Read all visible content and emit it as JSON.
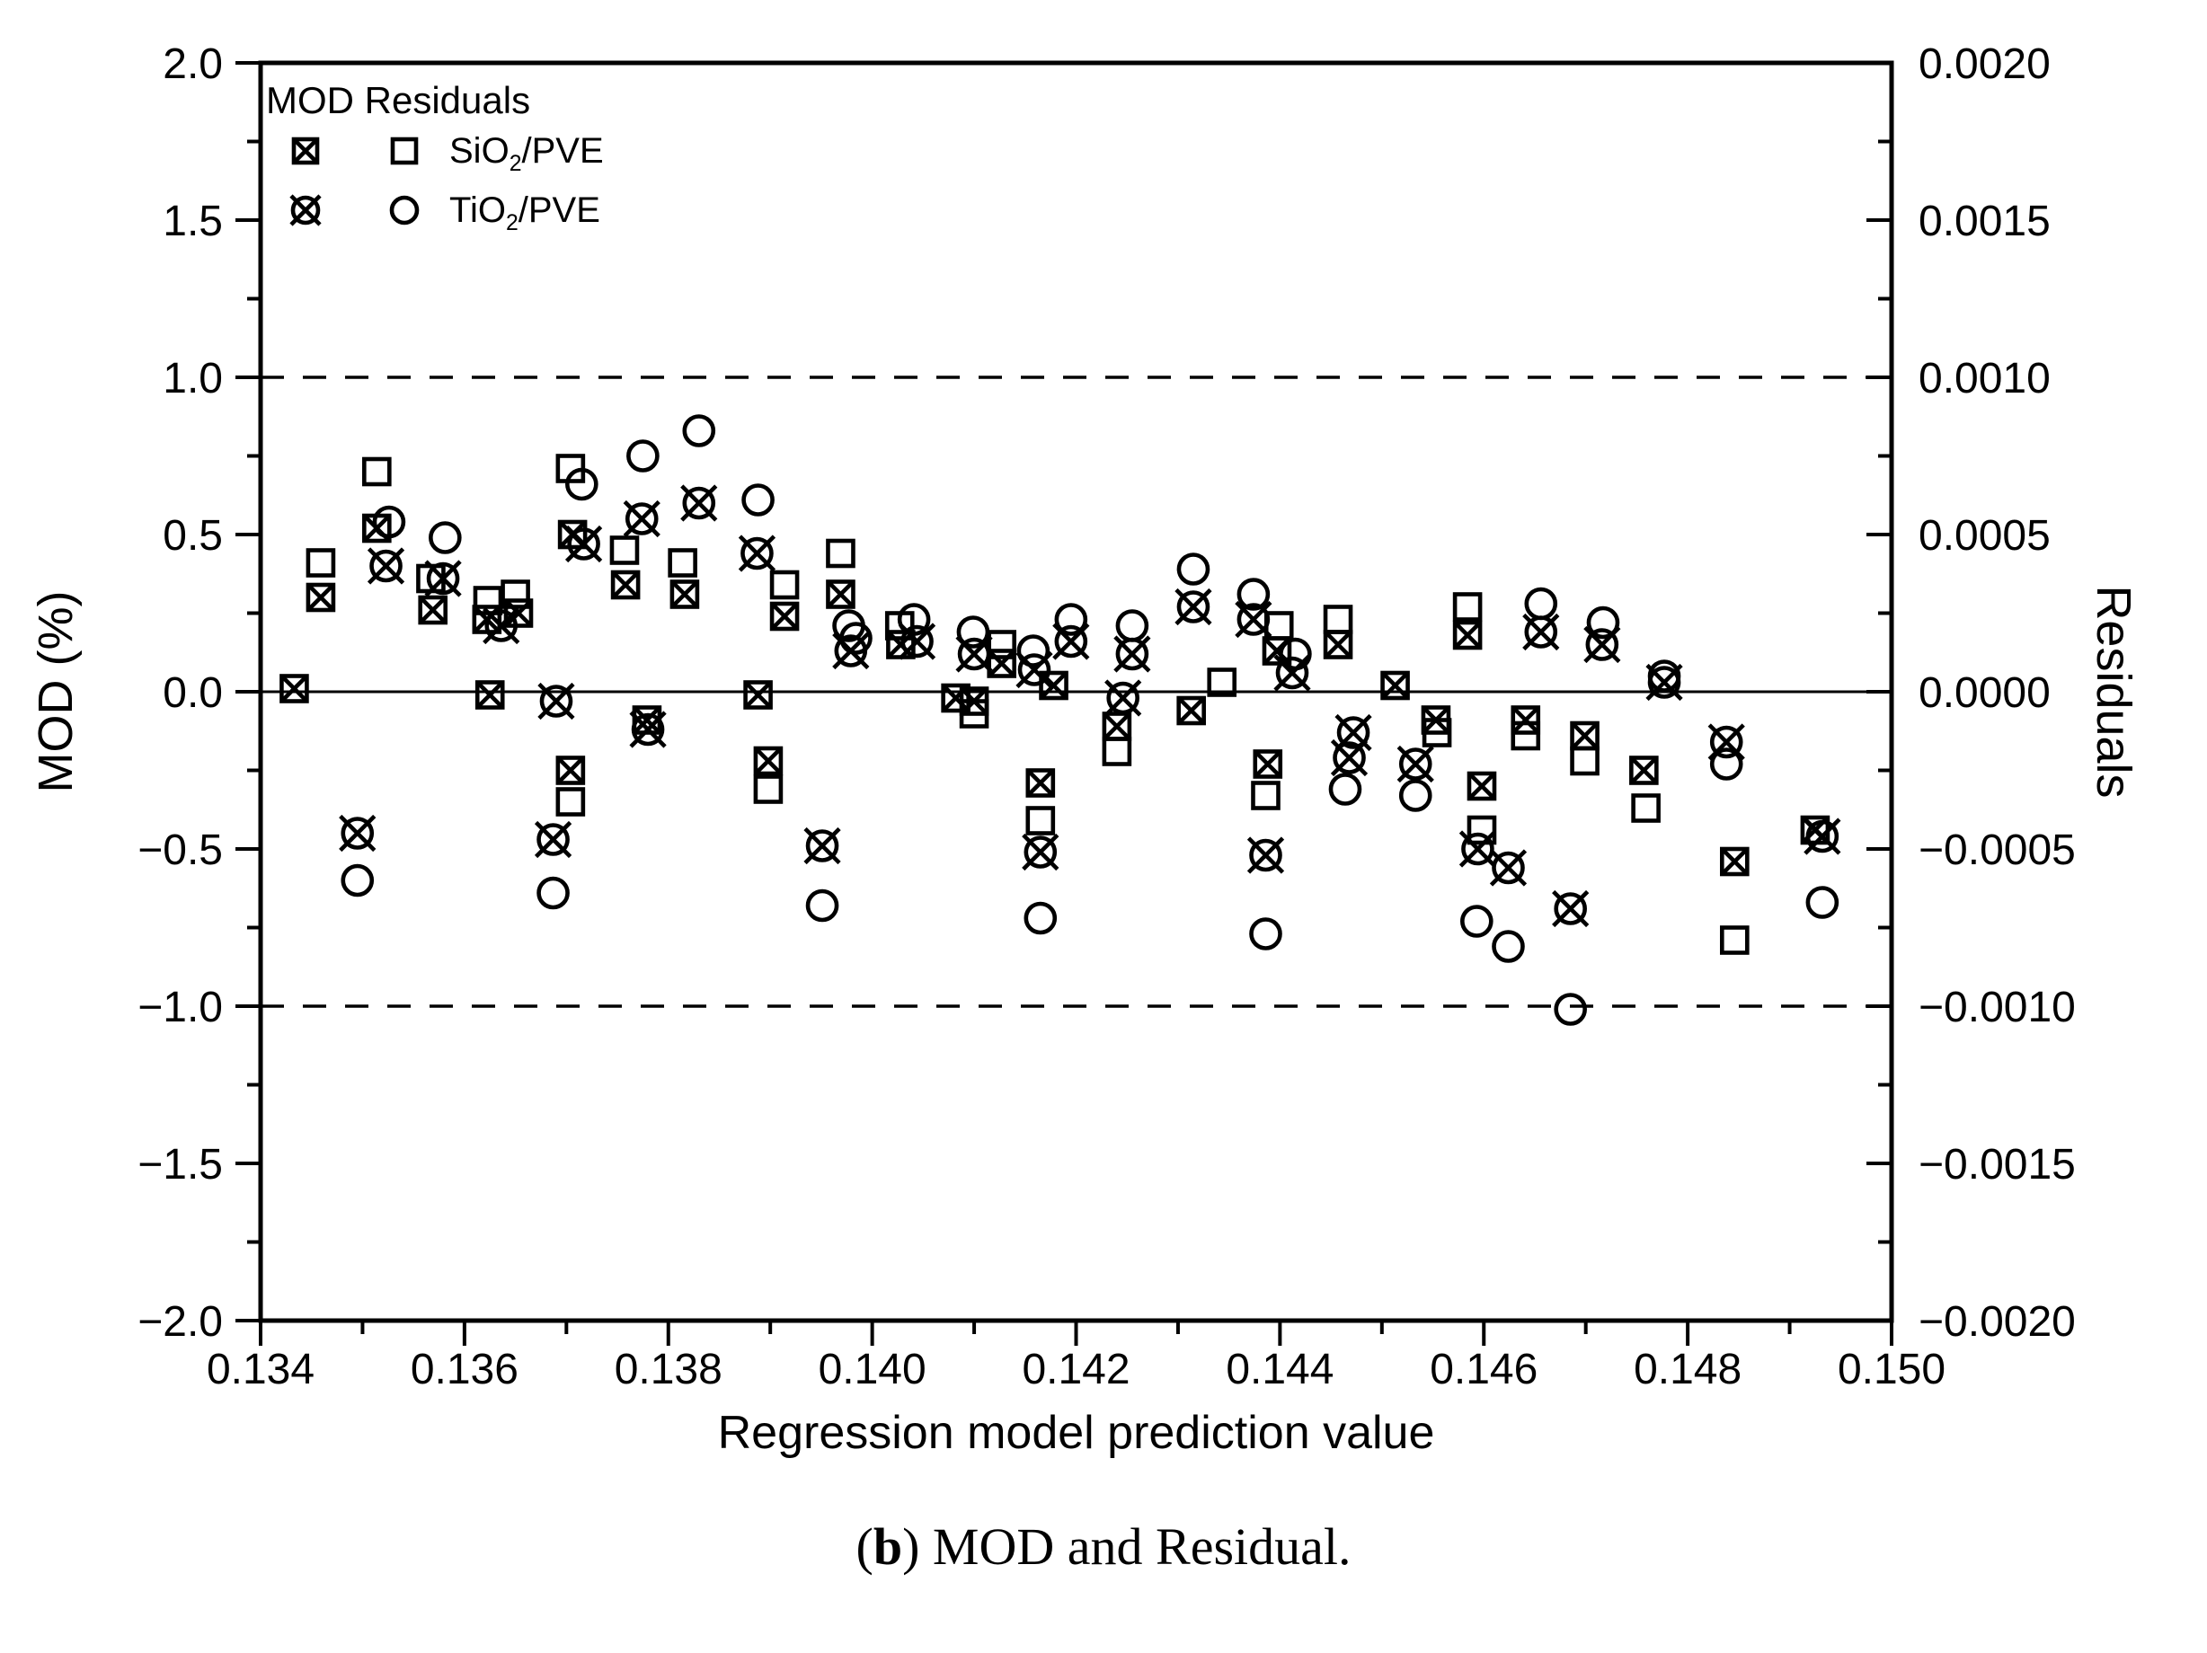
{
  "figure": {
    "caption": {
      "prefix": "(",
      "bold_letter": "b",
      "suffix": ") MOD and Residual."
    }
  },
  "chart_data": {
    "type": "scatter",
    "xlabel": "Regression model prediction value",
    "ylabel_left": "MOD (%)",
    "ylabel_right": "Residuals",
    "xlim": [
      0.134,
      0.15
    ],
    "ylim_left": [
      -2.0,
      2.0
    ],
    "ylim_right": [
      -0.002,
      0.002
    ],
    "x_tick_labels": [
      "0.134",
      "0.136",
      "0.138",
      "0.140",
      "0.142",
      "0.144",
      "0.146",
      "0.148",
      "0.150"
    ],
    "x_major_step": 0.002,
    "x_minor_step": 0.001,
    "y_left_tick_labels": [
      "2.0",
      "1.5",
      "1.0",
      "0.5",
      "0.0",
      "−0.5",
      "−1.0",
      "−1.5",
      "−2.0"
    ],
    "y_left_major_step": 0.5,
    "y_left_minor_step": 0.25,
    "y_right_tick_labels": [
      "0.0020",
      "0.0015",
      "0.0010",
      "0.0005",
      "0.0000",
      "−0.0005",
      "−0.0010",
      "−0.0015",
      "−0.0020"
    ],
    "grid": false,
    "legend_position": "top-left-inside",
    "reference_lines": {
      "solid_at_mod": 0.0,
      "dashed_at_mod": [
        1.0,
        -1.0
      ]
    },
    "legend": {
      "header": "MOD Residuals",
      "rows": [
        {
          "pre": "SiO",
          "sub": "2",
          "post": "/PVE",
          "mod_marker": "square-cross",
          "residual_marker": "square-open"
        },
        {
          "pre": "TiO",
          "sub": "2",
          "post": "/PVE",
          "mod_marker": "circle-cross",
          "residual_marker": "circle-open"
        }
      ]
    },
    "series": [
      {
        "name": "SiO2/PVE MOD",
        "marker": "square-cross",
        "axis": "left",
        "points": [
          [
            0.13433,
            0.01
          ],
          [
            0.13459,
            0.3
          ],
          [
            0.13514,
            0.52
          ],
          [
            0.13569,
            0.26
          ],
          [
            0.13622,
            0.23
          ],
          [
            0.13625,
            -0.01
          ],
          [
            0.13653,
            0.25
          ],
          [
            0.13706,
            0.5
          ],
          [
            0.13704,
            -0.25
          ],
          [
            0.13758,
            0.34
          ],
          [
            0.13779,
            -0.09
          ],
          [
            0.13816,
            0.31
          ],
          [
            0.13888,
            -0.01
          ],
          [
            0.13898,
            -0.22
          ],
          [
            0.13914,
            0.24
          ],
          [
            0.13969,
            0.31
          ],
          [
            0.14028,
            0.15
          ],
          [
            0.14082,
            -0.02
          ],
          [
            0.141,
            -0.03
          ],
          [
            0.14127,
            0.09
          ],
          [
            0.14165,
            -0.29
          ],
          [
            0.14178,
            0.02
          ],
          [
            0.1424,
            -0.11
          ],
          [
            0.14313,
            -0.06
          ],
          [
            0.14388,
            -0.23
          ],
          [
            0.14397,
            0.13
          ],
          [
            0.14457,
            0.15
          ],
          [
            0.14513,
            0.02
          ],
          [
            0.14553,
            -0.09
          ],
          [
            0.14584,
            0.18
          ],
          [
            0.14598,
            -0.3
          ],
          [
            0.14641,
            -0.09
          ],
          [
            0.14699,
            -0.14
          ],
          [
            0.14757,
            -0.25
          ],
          [
            0.14846,
            -0.54
          ],
          [
            0.14925,
            -0.44
          ]
        ]
      },
      {
        "name": "SiO2/PVE Residuals",
        "marker": "square-open",
        "axis": "right",
        "points": [
          [
            0.13459,
            0.00041
          ],
          [
            0.13514,
            0.0007
          ],
          [
            0.13567,
            0.00036
          ],
          [
            0.13623,
            0.00029
          ],
          [
            0.1365,
            0.00031
          ],
          [
            0.13704,
            0.00071
          ],
          [
            0.13704,
            -0.00035
          ],
          [
            0.13757,
            0.00045
          ],
          [
            0.13814,
            0.00041
          ],
          [
            0.13898,
            -0.00031
          ],
          [
            0.13914,
            0.00034
          ],
          [
            0.13969,
            0.00044
          ],
          [
            0.14027,
            0.00021
          ],
          [
            0.141,
            -7e-05
          ],
          [
            0.14127,
            0.00015
          ],
          [
            0.14165,
            -0.00041
          ],
          [
            0.1424,
            -0.00019
          ],
          [
            0.14343,
            3e-05
          ],
          [
            0.14386,
            -0.00033
          ],
          [
            0.14399,
            0.00021
          ],
          [
            0.14457,
            0.00023
          ],
          [
            0.14554,
            -0.00013
          ],
          [
            0.14584,
            0.00027
          ],
          [
            0.14598,
            -0.00044
          ],
          [
            0.14641,
            -0.00014
          ],
          [
            0.14699,
            -0.00022
          ],
          [
            0.14759,
            -0.00037
          ],
          [
            0.14846,
            -0.00079
          ]
        ]
      },
      {
        "name": "TiO2/PVE MOD",
        "marker": "circle-cross",
        "axis": "left",
        "points": [
          [
            0.13495,
            -0.45
          ],
          [
            0.13523,
            0.4
          ],
          [
            0.13579,
            0.36
          ],
          [
            0.13636,
            0.21
          ],
          [
            0.1369,
            -0.03
          ],
          [
            0.13687,
            -0.47
          ],
          [
            0.13717,
            0.47
          ],
          [
            0.13774,
            0.55
          ],
          [
            0.1378,
            -0.12
          ],
          [
            0.1383,
            0.6
          ],
          [
            0.13887,
            0.44
          ],
          [
            0.13951,
            -0.49
          ],
          [
            0.13979,
            0.13
          ],
          [
            0.14044,
            0.16
          ],
          [
            0.141,
            0.12
          ],
          [
            0.14159,
            0.07
          ],
          [
            0.14165,
            -0.51
          ],
          [
            0.14195,
            0.16
          ],
          [
            0.14246,
            -0.02
          ],
          [
            0.14255,
            0.12
          ],
          [
            0.14315,
            0.27
          ],
          [
            0.14374,
            0.23
          ],
          [
            0.14386,
            -0.52
          ],
          [
            0.14412,
            0.06
          ],
          [
            0.14472,
            -0.13
          ],
          [
            0.14468,
            -0.21
          ],
          [
            0.14533,
            -0.23
          ],
          [
            0.14594,
            -0.5
          ],
          [
            0.14624,
            -0.56
          ],
          [
            0.14656,
            0.19
          ],
          [
            0.14685,
            -0.69
          ],
          [
            0.14716,
            0.15
          ],
          [
            0.14777,
            0.03
          ],
          [
            0.14838,
            -0.16
          ],
          [
            0.14932,
            -0.46
          ]
        ]
      },
      {
        "name": "TiO2/PVE Residuals",
        "marker": "circle-open",
        "axis": "right",
        "points": [
          [
            0.13495,
            -0.0006
          ],
          [
            0.13526,
            0.00054
          ],
          [
            0.13581,
            0.00049
          ],
          [
            0.13687,
            -0.00064
          ],
          [
            0.13715,
            0.00066
          ],
          [
            0.13775,
            0.00075
          ],
          [
            0.1383,
            0.00083
          ],
          [
            0.13888,
            0.00061
          ],
          [
            0.13951,
            -0.00068
          ],
          [
            0.13977,
            0.00021
          ],
          [
            0.13984,
            0.00017
          ],
          [
            0.14041,
            0.00023
          ],
          [
            0.14099,
            0.00019
          ],
          [
            0.14158,
            0.00013
          ],
          [
            0.14165,
            -0.00072
          ],
          [
            0.14195,
            0.00023
          ],
          [
            0.14255,
            0.00021
          ],
          [
            0.14315,
            0.00039
          ],
          [
            0.14374,
            0.00031
          ],
          [
            0.14386,
            -0.00077
          ],
          [
            0.14415,
            0.00012
          ],
          [
            0.14464,
            -0.00031
          ],
          [
            0.14533,
            -0.00033
          ],
          [
            0.14593,
            -0.00073
          ],
          [
            0.14624,
            -0.00081
          ],
          [
            0.14656,
            0.00028
          ],
          [
            0.14685,
            -0.00101
          ],
          [
            0.14717,
            0.00022
          ],
          [
            0.14777,
            5e-05
          ],
          [
            0.14838,
            -0.00023
          ],
          [
            0.14932,
            -0.00067
          ]
        ]
      }
    ]
  }
}
